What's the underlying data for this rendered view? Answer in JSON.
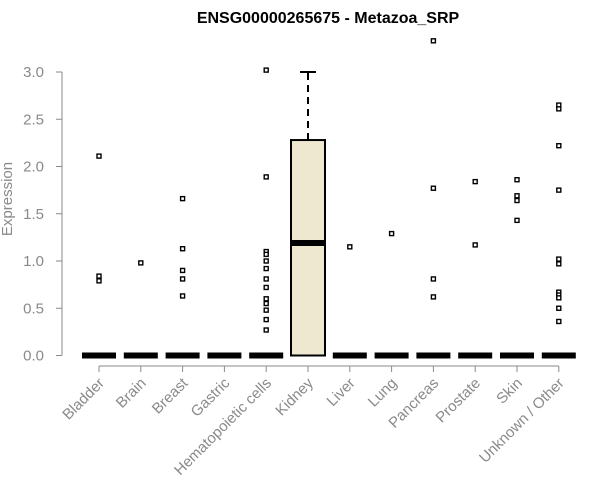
{
  "chart_data": {
    "type": "box",
    "title": "ENSG00000265675 - Metazoa_SRP",
    "ylabel": "Expression",
    "xlabel": "",
    "ylim": [
      0,
      3.3
    ],
    "yticks": [
      "0.0",
      "0.5",
      "1.0",
      "1.5",
      "2.0",
      "2.5",
      "3.0"
    ],
    "box_fill": "#ede8cf",
    "outline_color": "#000000",
    "groups": [
      {
        "name": "Bladder",
        "median": 0,
        "q1": 0,
        "q3": 0,
        "whisker_low": 0,
        "whisker_high": 0,
        "outliers": [
          2.11,
          0.84,
          0.79
        ]
      },
      {
        "name": "Brain",
        "median": 0,
        "q1": 0,
        "q3": 0,
        "whisker_low": 0,
        "whisker_high": 0,
        "outliers": [
          0.98
        ]
      },
      {
        "name": "Breast",
        "median": 0,
        "q1": 0,
        "q3": 0,
        "whisker_low": 0,
        "whisker_high": 0,
        "outliers": [
          1.66,
          1.13,
          0.9,
          0.81,
          0.63
        ]
      },
      {
        "name": "Gastric",
        "median": 0,
        "q1": 0,
        "q3": 0,
        "whisker_low": 0,
        "whisker_high": 0,
        "outliers": []
      },
      {
        "name": "Hematopoietic cells",
        "median": 0,
        "q1": 0,
        "q3": 0,
        "whisker_low": 0,
        "whisker_high": 0,
        "outliers": [
          3.02,
          1.89,
          1.1,
          1.07,
          1.0,
          0.92,
          0.81,
          0.72,
          0.6,
          0.55,
          0.48,
          0.38,
          0.27
        ]
      },
      {
        "name": "Kidney",
        "median": 1.19,
        "q1": 0,
        "q3": 2.28,
        "whisker_low": 0,
        "whisker_high": 3.0,
        "outliers": []
      },
      {
        "name": "Liver",
        "median": 0,
        "q1": 0,
        "q3": 0,
        "whisker_low": 0,
        "whisker_high": 0,
        "outliers": [
          1.15
        ]
      },
      {
        "name": "Lung",
        "median": 0,
        "q1": 0,
        "q3": 0,
        "whisker_low": 0,
        "whisker_high": 0,
        "outliers": [
          1.29
        ]
      },
      {
        "name": "Pancreas",
        "median": 0,
        "q1": 0,
        "q3": 0,
        "whisker_low": 0,
        "whisker_high": 0,
        "outliers": [
          3.33,
          1.77,
          0.81,
          0.62
        ]
      },
      {
        "name": "Prostate",
        "median": 0,
        "q1": 0,
        "q3": 0,
        "whisker_low": 0,
        "whisker_high": 0,
        "outliers": [
          1.84,
          1.17
        ]
      },
      {
        "name": "Skin",
        "median": 0,
        "q1": 0,
        "q3": 0,
        "whisker_low": 0,
        "whisker_high": 0,
        "outliers": [
          1.86,
          1.69,
          1.64,
          1.43
        ]
      },
      {
        "name": "Unknown / Other",
        "median": 0,
        "q1": 0,
        "q3": 0,
        "whisker_low": 0,
        "whisker_high": 0,
        "outliers": [
          2.65,
          2.61,
          2.22,
          1.75,
          1.02,
          0.97,
          0.67,
          0.64,
          0.61,
          0.5,
          0.36
        ]
      }
    ]
  }
}
